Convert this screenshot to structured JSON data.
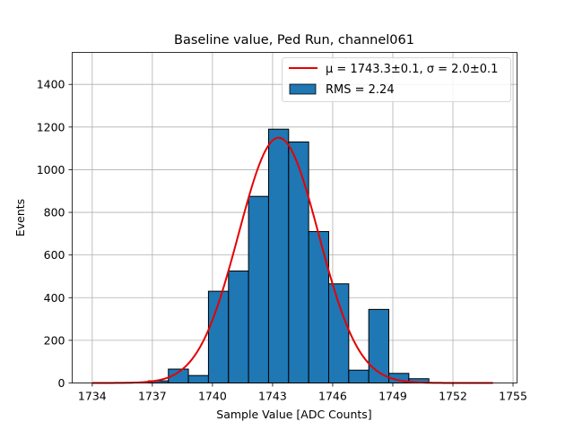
{
  "chart_data": {
    "type": "bar",
    "title": "Baseline value, Ped Run, channel061",
    "xlabel": "Sample Value [ADC Counts]",
    "ylabel": "Events",
    "xlim": [
      1733,
      1755.2
    ],
    "ylim": [
      0,
      1550
    ],
    "x_ticks": [
      1734,
      1737,
      1740,
      1743,
      1746,
      1749,
      1752,
      1755
    ],
    "y_ticks": [
      0,
      200,
      400,
      600,
      800,
      1000,
      1200,
      1400
    ],
    "grid": true,
    "legend_position": "top-right",
    "bar_color": "#1f77b4",
    "fit_color": "#e60000",
    "histogram": {
      "name": "RMS = 2.24",
      "bin_edges": [
        1736.8,
        1737.8,
        1738.8,
        1739.8,
        1740.8,
        1741.8,
        1742.8,
        1743.8,
        1744.8,
        1745.8,
        1746.8,
        1747.8,
        1748.8,
        1749.8,
        1750.8
      ],
      "counts": [
        10,
        65,
        35,
        430,
        525,
        875,
        1190,
        1130,
        710,
        465,
        60,
        345,
        45,
        20
      ]
    },
    "fit": {
      "name": "μ = 1743.3±0.1, σ = 2.0±0.1",
      "mu": 1743.3,
      "sigma": 2.0,
      "amplitude": 1150,
      "x_range": [
        1734,
        1754
      ]
    }
  }
}
